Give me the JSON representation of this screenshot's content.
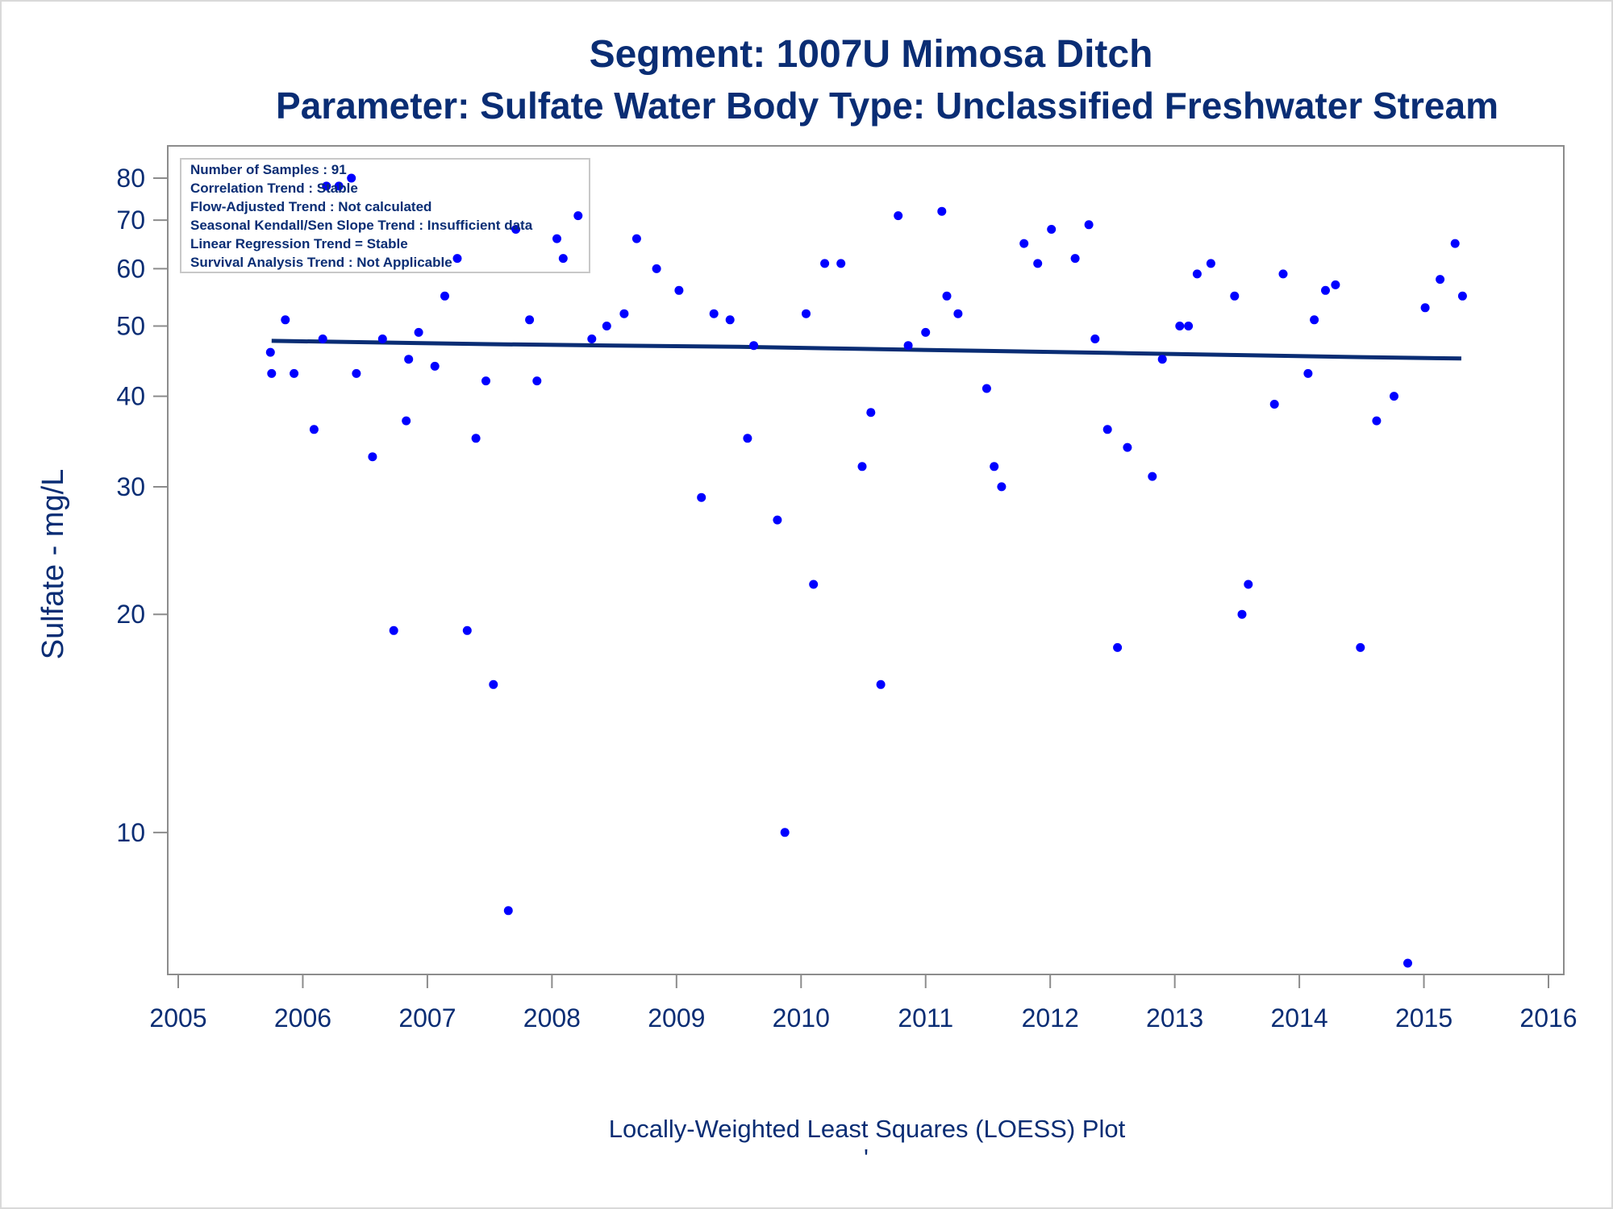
{
  "chart_data": {
    "type": "scatter",
    "title": "Segment: 1007U  Mimosa Ditch",
    "subtitle": "Parameter: Sulfate   Water Body Type: Unclassified Freshwater Stream",
    "xlabel": "Locally-Weighted Least Squares (LOESS) Plot",
    "ylabel": "Sulfate - mg/L",
    "x_scale": "time",
    "y_scale": "log",
    "xlim": [
      2005,
      2016
    ],
    "ylim": [
      6.5,
      84
    ],
    "x_ticks": [
      "2005",
      "2006",
      "2007",
      "2008",
      "2009",
      "2010",
      "2011",
      "2012",
      "2013",
      "2014",
      "2015",
      "2016"
    ],
    "y_ticks": [
      10,
      20,
      30,
      40,
      50,
      60,
      70,
      80
    ],
    "grid": false,
    "footnote_mark": "'",
    "info_box": {
      "position": "top-left",
      "lines": [
        "Number of Samples : 91",
        "Correlation Trend : Stable",
        "Flow-Adjusted Trend : Not calculated",
        "Seasonal Kendall/Sen Slope Trend : Insufficient data",
        "Linear Regression Trend = Stable",
        "Survival Analysis Trend : Not Applicable"
      ]
    },
    "colors": {
      "points": "#0000ff",
      "trend_line": "#0a2d74",
      "text": "#0a2d74",
      "axis": "#8c8c8c"
    },
    "series": [
      {
        "type": "scatter",
        "points": [
          {
            "x": 2005.74,
            "y": 46
          },
          {
            "x": 2005.75,
            "y": 43
          },
          {
            "x": 2005.86,
            "y": 51
          },
          {
            "x": 2005.93,
            "y": 43
          },
          {
            "x": 2006.09,
            "y": 36
          },
          {
            "x": 2006.16,
            "y": 48
          },
          {
            "x": 2006.19,
            "y": 78
          },
          {
            "x": 2006.29,
            "y": 78
          },
          {
            "x": 2006.39,
            "y": 80
          },
          {
            "x": 2006.43,
            "y": 43
          },
          {
            "x": 2006.56,
            "y": 33
          },
          {
            "x": 2006.64,
            "y": 48
          },
          {
            "x": 2006.73,
            "y": 19
          },
          {
            "x": 2006.83,
            "y": 37
          },
          {
            "x": 2006.85,
            "y": 45
          },
          {
            "x": 2006.93,
            "y": 49
          },
          {
            "x": 2007.06,
            "y": 44
          },
          {
            "x": 2007.14,
            "y": 55
          },
          {
            "x": 2007.24,
            "y": 62
          },
          {
            "x": 2007.32,
            "y": 19
          },
          {
            "x": 2007.39,
            "y": 35
          },
          {
            "x": 2007.47,
            "y": 42
          },
          {
            "x": 2007.53,
            "y": 16
          },
          {
            "x": 2007.65,
            "y": 7.8
          },
          {
            "x": 2007.71,
            "y": 68
          },
          {
            "x": 2007.82,
            "y": 51
          },
          {
            "x": 2007.88,
            "y": 42
          },
          {
            "x": 2008.04,
            "y": 66
          },
          {
            "x": 2008.09,
            "y": 62
          },
          {
            "x": 2008.21,
            "y": 71
          },
          {
            "x": 2008.32,
            "y": 48
          },
          {
            "x": 2008.44,
            "y": 50
          },
          {
            "x": 2008.58,
            "y": 52
          },
          {
            "x": 2008.68,
            "y": 66
          },
          {
            "x": 2008.84,
            "y": 60
          },
          {
            "x": 2009.02,
            "y": 56
          },
          {
            "x": 2009.2,
            "y": 29
          },
          {
            "x": 2009.3,
            "y": 52
          },
          {
            "x": 2009.43,
            "y": 51
          },
          {
            "x": 2009.57,
            "y": 35
          },
          {
            "x": 2009.62,
            "y": 47
          },
          {
            "x": 2009.81,
            "y": 27
          },
          {
            "x": 2009.87,
            "y": 10
          },
          {
            "x": 2010.04,
            "y": 52
          },
          {
            "x": 2010.1,
            "y": 22
          },
          {
            "x": 2010.19,
            "y": 61
          },
          {
            "x": 2010.32,
            "y": 61
          },
          {
            "x": 2010.49,
            "y": 32
          },
          {
            "x": 2010.56,
            "y": 38
          },
          {
            "x": 2010.64,
            "y": 16
          },
          {
            "x": 2010.78,
            "y": 71
          },
          {
            "x": 2010.86,
            "y": 47
          },
          {
            "x": 2011.0,
            "y": 49
          },
          {
            "x": 2011.13,
            "y": 72
          },
          {
            "x": 2011.17,
            "y": 55
          },
          {
            "x": 2011.26,
            "y": 52
          },
          {
            "x": 2011.49,
            "y": 41
          },
          {
            "x": 2011.55,
            "y": 32
          },
          {
            "x": 2011.61,
            "y": 30
          },
          {
            "x": 2011.79,
            "y": 65
          },
          {
            "x": 2011.9,
            "y": 61
          },
          {
            "x": 2012.01,
            "y": 68
          },
          {
            "x": 2012.2,
            "y": 62
          },
          {
            "x": 2012.31,
            "y": 69
          },
          {
            "x": 2012.36,
            "y": 48
          },
          {
            "x": 2012.46,
            "y": 36
          },
          {
            "x": 2012.54,
            "y": 18
          },
          {
            "x": 2012.62,
            "y": 34
          },
          {
            "x": 2012.82,
            "y": 31
          },
          {
            "x": 2012.9,
            "y": 45
          },
          {
            "x": 2013.04,
            "y": 50
          },
          {
            "x": 2013.11,
            "y": 50
          },
          {
            "x": 2013.18,
            "y": 59
          },
          {
            "x": 2013.29,
            "y": 61
          },
          {
            "x": 2013.48,
            "y": 55
          },
          {
            "x": 2013.54,
            "y": 20
          },
          {
            "x": 2013.59,
            "y": 22
          },
          {
            "x": 2013.8,
            "y": 39
          },
          {
            "x": 2013.87,
            "y": 59
          },
          {
            "x": 2014.07,
            "y": 43
          },
          {
            "x": 2014.12,
            "y": 51
          },
          {
            "x": 2014.21,
            "y": 56
          },
          {
            "x": 2014.29,
            "y": 57
          },
          {
            "x": 2014.49,
            "y": 18
          },
          {
            "x": 2014.62,
            "y": 37
          },
          {
            "x": 2014.76,
            "y": 40
          },
          {
            "x": 2014.87,
            "y": 6.6
          },
          {
            "x": 2015.01,
            "y": 53
          },
          {
            "x": 2015.13,
            "y": 58
          },
          {
            "x": 2015.25,
            "y": 65
          },
          {
            "x": 2015.31,
            "y": 55
          }
        ]
      },
      {
        "type": "line",
        "points": [
          {
            "x": 2005.75,
            "y": 47.7
          },
          {
            "x": 2006.5,
            "y": 47.5
          },
          {
            "x": 2007.5,
            "y": 47.2
          },
          {
            "x": 2008.5,
            "y": 47.0
          },
          {
            "x": 2009.5,
            "y": 46.8
          },
          {
            "x": 2010.5,
            "y": 46.5
          },
          {
            "x": 2011.5,
            "y": 46.2
          },
          {
            "x": 2012.5,
            "y": 45.9
          },
          {
            "x": 2013.5,
            "y": 45.6
          },
          {
            "x": 2014.5,
            "y": 45.3
          },
          {
            "x": 2015.3,
            "y": 45.1
          }
        ]
      }
    ]
  }
}
